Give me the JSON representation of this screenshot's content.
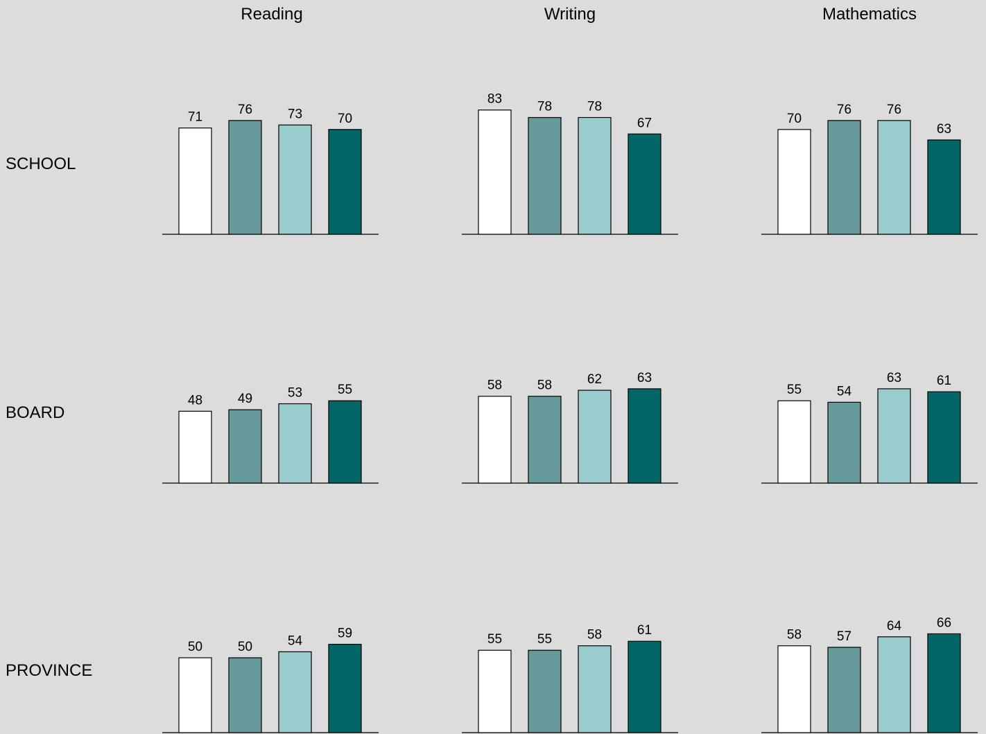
{
  "chart_data": {
    "type": "bar",
    "layout": "small-multiples",
    "columns": [
      "Reading",
      "Writing",
      "Mathematics"
    ],
    "rows": [
      "SCHOOL",
      "BOARD",
      "PROVINCE"
    ],
    "series_colors": [
      "#ffffff",
      "#669999",
      "#99cccc",
      "#006666"
    ],
    "ylim": [
      0,
      100
    ],
    "grid": false,
    "legend": "none",
    "panels": [
      {
        "row": "SCHOOL",
        "column": "Reading",
        "values": [
          71,
          76,
          73,
          70
        ]
      },
      {
        "row": "SCHOOL",
        "column": "Writing",
        "values": [
          83,
          78,
          78,
          67
        ]
      },
      {
        "row": "SCHOOL",
        "column": "Mathematics",
        "values": [
          70,
          76,
          76,
          63
        ]
      },
      {
        "row": "BOARD",
        "column": "Reading",
        "values": [
          48,
          49,
          53,
          55
        ]
      },
      {
        "row": "BOARD",
        "column": "Writing",
        "values": [
          58,
          58,
          62,
          63
        ]
      },
      {
        "row": "BOARD",
        "column": "Mathematics",
        "values": [
          55,
          54,
          63,
          61
        ]
      },
      {
        "row": "PROVINCE",
        "column": "Reading",
        "values": [
          50,
          50,
          54,
          59
        ]
      },
      {
        "row": "PROVINCE",
        "column": "Writing",
        "values": [
          55,
          55,
          58,
          61
        ]
      },
      {
        "row": "PROVINCE",
        "column": "Mathematics",
        "values": [
          58,
          57,
          64,
          66
        ]
      }
    ]
  }
}
